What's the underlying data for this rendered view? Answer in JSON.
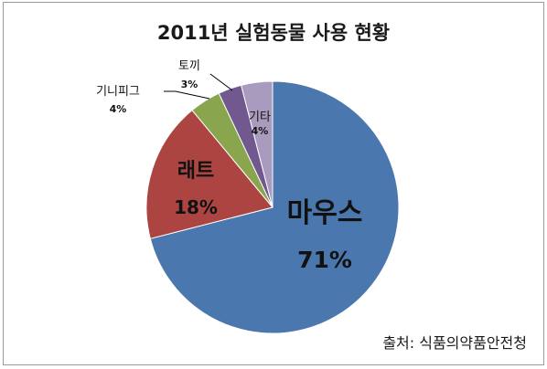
{
  "chart_data": {
    "type": "pie",
    "title": "2011년 실험동물 사용 현황",
    "slices": [
      {
        "label": "마우스",
        "value": 71,
        "percent": "71%",
        "color": "#4a77ad"
      },
      {
        "label": "래트",
        "value": 18,
        "percent": "18%",
        "color": "#ac4542"
      },
      {
        "label": "기니피그",
        "value": 4,
        "percent": "4%",
        "color": "#89a54e"
      },
      {
        "label": "토끼",
        "value": 3,
        "percent": "3%",
        "color": "#71588f"
      },
      {
        "label": "기타",
        "value": 4,
        "percent": "4%",
        "color": "#a99bbd"
      }
    ],
    "legend": "none"
  },
  "source_note": "출처: 식품의약품안전청"
}
